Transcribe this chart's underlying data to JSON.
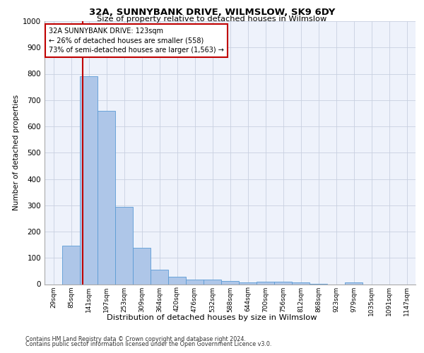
{
  "title1": "32A, SUNNYBANK DRIVE, WILMSLOW, SK9 6DY",
  "title2": "Size of property relative to detached houses in Wilmslow",
  "xlabel": "Distribution of detached houses by size in Wilmslow",
  "ylabel": "Number of detached properties",
  "bin_labels": [
    "29sqm",
    "85sqm",
    "141sqm",
    "197sqm",
    "253sqm",
    "309sqm",
    "364sqm",
    "420sqm",
    "476sqm",
    "532sqm",
    "588sqm",
    "644sqm",
    "700sqm",
    "756sqm",
    "812sqm",
    "868sqm",
    "923sqm",
    "979sqm",
    "1035sqm",
    "1091sqm",
    "1147sqm"
  ],
  "bar_values": [
    0,
    145,
    790,
    660,
    295,
    138,
    55,
    28,
    18,
    18,
    13,
    8,
    10,
    10,
    8,
    1,
    0,
    8,
    0,
    0,
    0
  ],
  "bar_color": "#aec6e8",
  "bar_edge_color": "#5b9bd5",
  "ylim": [
    0,
    1000
  ],
  "yticks": [
    0,
    100,
    200,
    300,
    400,
    500,
    600,
    700,
    800,
    900,
    1000
  ],
  "marker_color": "#c00000",
  "annotation_text": "32A SUNNYBANK DRIVE: 123sqm\n← 26% of detached houses are smaller (558)\n73% of semi-detached houses are larger (1,563) →",
  "annotation_box_color": "#c00000",
  "footer1": "Contains HM Land Registry data © Crown copyright and database right 2024.",
  "footer2": "Contains public sector information licensed under the Open Government Licence v3.0.",
  "plot_bg_color": "#eef2fb"
}
